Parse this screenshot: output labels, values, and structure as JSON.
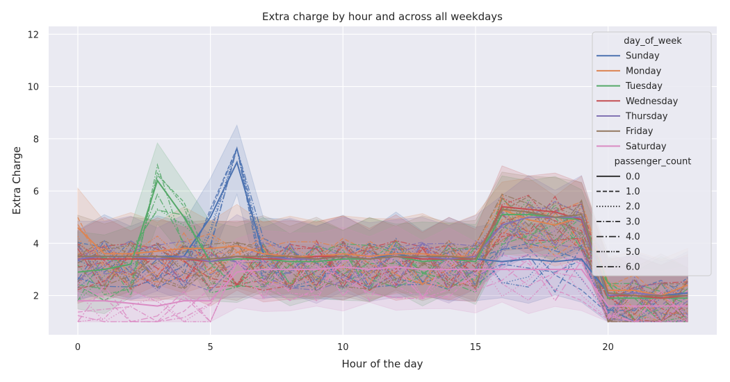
{
  "chart_data": {
    "type": "line",
    "title": "Extra charge by hour and across all weekdays",
    "xlabel": "Hour of the day",
    "ylabel": "Extra Charge",
    "xlim": [
      -1.1,
      24.1
    ],
    "ylim": [
      0.5,
      12.3
    ],
    "xticks": [
      0,
      5,
      10,
      15,
      20
    ],
    "yticks": [
      2,
      4,
      6,
      8,
      10,
      12
    ],
    "grid": true,
    "legend_position": "top-right",
    "legend": {
      "hue_title": "day_of_week",
      "style_title": "passenger_count"
    },
    "series": [
      {
        "name": "Sunday",
        "color": "#4c72b0",
        "x": [
          0,
          1,
          2,
          3,
          4,
          5,
          6,
          7,
          8,
          9,
          10,
          11,
          12,
          13,
          14,
          15,
          16,
          17,
          18,
          19,
          20,
          21,
          22,
          23
        ],
        "y": [
          3.5,
          3.5,
          3.5,
          3.5,
          3.5,
          5.0,
          7.1,
          3.6,
          3.4,
          3.4,
          3.5,
          3.4,
          3.6,
          3.4,
          3.4,
          3.4,
          3.3,
          3.4,
          3.3,
          3.4,
          2.1,
          2.0,
          2.0,
          2.1
        ]
      },
      {
        "name": "Monday",
        "color": "#dd8452",
        "x": [
          0,
          1,
          2,
          3,
          4,
          5,
          6,
          7,
          8,
          9,
          10,
          11,
          12,
          13,
          14,
          15,
          16,
          17,
          18,
          19,
          20,
          21,
          22,
          23
        ],
        "y": [
          4.6,
          3.6,
          3.6,
          3.7,
          3.8,
          3.8,
          3.9,
          3.6,
          3.5,
          3.5,
          3.6,
          3.5,
          3.6,
          3.6,
          3.5,
          3.5,
          5.3,
          4.9,
          4.7,
          5.0,
          2.2,
          2.2,
          2.0,
          2.4
        ]
      },
      {
        "name": "Tuesday",
        "color": "#55a868",
        "x": [
          0,
          1,
          2,
          3,
          4,
          5,
          6,
          7,
          8,
          9,
          10,
          11,
          12,
          13,
          14,
          15,
          16,
          17,
          18,
          19,
          20,
          21,
          22,
          23
        ],
        "y": [
          2.9,
          3.0,
          3.2,
          6.4,
          5.0,
          3.3,
          3.4,
          3.4,
          3.3,
          3.3,
          3.4,
          3.4,
          3.5,
          3.3,
          3.4,
          3.3,
          5.1,
          5.1,
          5.0,
          4.9,
          1.9,
          1.9,
          1.9,
          1.9
        ]
      },
      {
        "name": "Wednesday",
        "color": "#c44e52",
        "x": [
          0,
          1,
          2,
          3,
          4,
          5,
          6,
          7,
          8,
          9,
          10,
          11,
          12,
          13,
          14,
          15,
          16,
          17,
          18,
          19,
          20,
          21,
          22,
          23
        ],
        "y": [
          3.4,
          3.4,
          3.4,
          3.4,
          3.4,
          3.3,
          3.5,
          3.4,
          3.4,
          3.5,
          3.5,
          3.4,
          3.5,
          3.4,
          3.4,
          3.4,
          5.4,
          5.3,
          5.2,
          4.9,
          2.0,
          2.0,
          1.9,
          2.0
        ]
      },
      {
        "name": "Thursday",
        "color": "#8172b3",
        "x": [
          0,
          1,
          2,
          3,
          4,
          5,
          6,
          7,
          8,
          9,
          10,
          11,
          12,
          13,
          14,
          15,
          16,
          17,
          18,
          19,
          20,
          21,
          22,
          23
        ],
        "y": [
          3.4,
          3.5,
          3.5,
          3.4,
          3.5,
          3.3,
          3.5,
          3.5,
          3.4,
          3.4,
          3.5,
          3.4,
          3.5,
          3.5,
          3.4,
          3.5,
          4.7,
          5.0,
          5.0,
          5.0,
          2.0,
          2.1,
          2.0,
          2.0
        ]
      },
      {
        "name": "Friday",
        "color": "#937860",
        "x": [
          0,
          1,
          2,
          3,
          4,
          5,
          6,
          7,
          8,
          9,
          10,
          11,
          12,
          13,
          14,
          15,
          16,
          17,
          18,
          19,
          20,
          21,
          22,
          23
        ],
        "y": [
          3.5,
          3.5,
          3.5,
          3.5,
          3.4,
          3.4,
          3.5,
          3.5,
          3.5,
          3.4,
          3.5,
          3.4,
          3.5,
          3.5,
          3.5,
          3.4,
          5.3,
          5.2,
          5.0,
          5.1,
          2.1,
          2.0,
          2.0,
          2.0
        ]
      },
      {
        "name": "Saturday",
        "color": "#da8bc3",
        "x": [
          0,
          1,
          2,
          3,
          4,
          5,
          6,
          7,
          8,
          9,
          10,
          11,
          12,
          13,
          14,
          15,
          16,
          17,
          18,
          19,
          20,
          21,
          22,
          23
        ],
        "y": [
          1.8,
          1.8,
          1.7,
          1.6,
          1.8,
          1.8,
          2.9,
          3.0,
          3.0,
          3.0,
          3.1,
          3.0,
          3.1,
          3.0,
          3.0,
          3.0,
          3.0,
          3.0,
          3.0,
          3.0,
          1.6,
          1.6,
          1.6,
          1.6
        ]
      }
    ],
    "passenger_counts": [
      "0.0",
      "1.0",
      "2.0",
      "3.0",
      "4.0",
      "5.0",
      "6.0"
    ]
  }
}
